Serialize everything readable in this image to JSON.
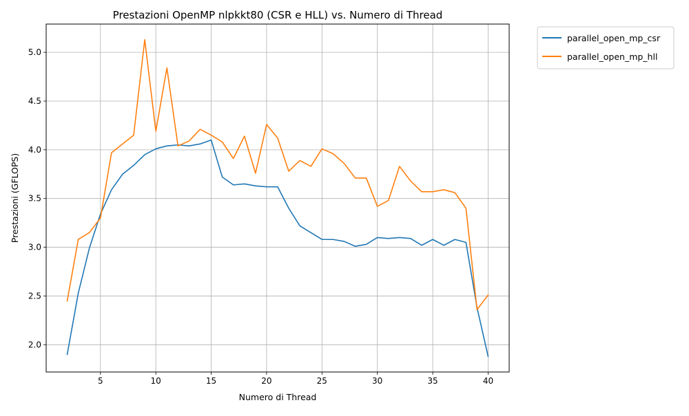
{
  "chart_data": {
    "type": "line",
    "title": "Prestazioni OpenMP nlpkkt80 (CSR e HLL) vs. Numero di Thread",
    "xlabel": "Numero di Thread",
    "ylabel": "Prestazioni (GFLOPS)",
    "xlim": [
      0.1,
      41.9
    ],
    "ylim": [
      1.72,
      5.29
    ],
    "xticks": [
      5,
      10,
      15,
      20,
      25,
      30,
      35,
      40
    ],
    "xtick_labels": [
      "5",
      "10",
      "15",
      "20",
      "25",
      "30",
      "35",
      "40"
    ],
    "yticks": [
      2.0,
      2.5,
      3.0,
      3.5,
      4.0,
      4.5,
      5.0
    ],
    "ytick_labels": [
      "2.0",
      "2.5",
      "3.0",
      "3.5",
      "4.0",
      "4.5",
      "5.0"
    ],
    "grid": true,
    "legend_position": "outside-top-right",
    "x": [
      2,
      3,
      4,
      5,
      6,
      7,
      8,
      9,
      10,
      11,
      12,
      13,
      14,
      15,
      16,
      17,
      18,
      19,
      20,
      21,
      22,
      23,
      24,
      25,
      26,
      27,
      28,
      29,
      30,
      31,
      32,
      33,
      34,
      35,
      36,
      37,
      38,
      39,
      40
    ],
    "series": [
      {
        "name": "parallel_open_mp_csr",
        "color": "#1f77b4",
        "values": [
          1.9,
          2.53,
          2.99,
          3.34,
          3.59,
          3.75,
          3.84,
          3.95,
          4.01,
          4.04,
          4.05,
          4.04,
          4.06,
          4.1,
          3.72,
          3.64,
          3.65,
          3.63,
          3.62,
          3.62,
          3.4,
          3.22,
          3.15,
          3.08,
          3.08,
          3.06,
          3.01,
          3.03,
          3.1,
          3.09,
          3.1,
          3.09,
          3.02,
          3.08,
          3.02,
          3.08,
          3.05,
          2.38,
          1.88
        ]
      },
      {
        "name": "parallel_open_mp_hll",
        "color": "#ff7f0e",
        "values": [
          2.45,
          3.08,
          3.15,
          3.3,
          3.97,
          4.06,
          4.15,
          5.13,
          4.19,
          4.84,
          4.04,
          4.09,
          4.21,
          4.15,
          4.08,
          3.91,
          4.14,
          3.76,
          4.26,
          4.12,
          3.78,
          3.89,
          3.83,
          4.01,
          3.96,
          3.86,
          3.71,
          3.71,
          3.42,
          3.48,
          3.83,
          3.68,
          3.57,
          3.57,
          3.59,
          3.56,
          3.4,
          2.36,
          2.51
        ]
      }
    ]
  }
}
